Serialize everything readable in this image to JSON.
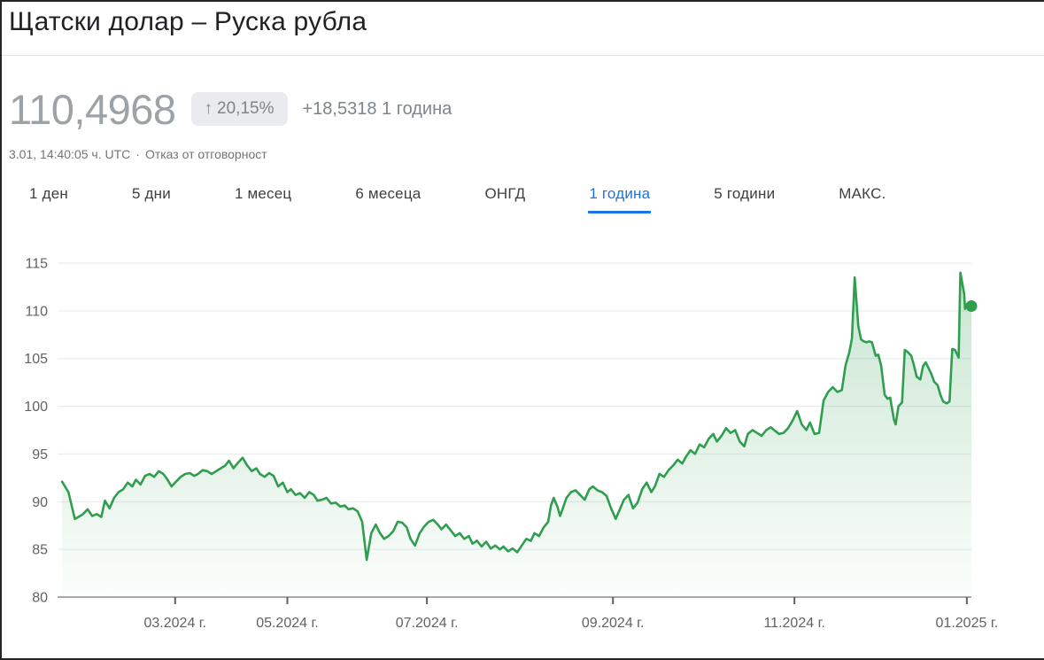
{
  "header": {
    "title": "Щатски долар – Руска рубла",
    "price": "110,4968",
    "change_badge": {
      "arrow": "↑",
      "percent": "20,15%"
    },
    "change_text": "+18,5318 1 година",
    "timestamp": "3.01, 14:40:05 ч. UTC",
    "separator": "·",
    "disclaimer": "Отказ от отговорност"
  },
  "tabs": [
    {
      "label": "1 ден",
      "active": false
    },
    {
      "label": "5 дни",
      "active": false
    },
    {
      "label": "1 месец",
      "active": false
    },
    {
      "label": "6 месеца",
      "active": false
    },
    {
      "label": "ОНГД",
      "active": false
    },
    {
      "label": "1 година",
      "active": true
    },
    {
      "label": "5 години",
      "active": false
    },
    {
      "label": "МАКС.",
      "active": false
    }
  ],
  "colors": {
    "line_green": "#2f9e4f",
    "active_tab_blue": "#1a73e8",
    "grid_gray": "#e7e9ec",
    "axis_gray": "#9a9ea3",
    "label_gray": "#5f6368",
    "price_gray": "#9da2a7",
    "badge_bg": "#e9ebee",
    "badge_text": "#7d858c"
  },
  "chart_data": {
    "type": "line",
    "title": "Щатски долар – Руска рубла, 1 година",
    "xlabel": "",
    "ylabel": "",
    "ylim": [
      80,
      115
    ],
    "grid": true,
    "legend": "none",
    "y_ticks": [
      80,
      85,
      90,
      95,
      100,
      105,
      110,
      115
    ],
    "x_ticks": [
      {
        "label": "03.2024 г.",
        "f": 0.127
      },
      {
        "label": "05.2024 г.",
        "f": 0.25
      },
      {
        "label": "07.2024 г.",
        "f": 0.403
      },
      {
        "label": "09.2024 г.",
        "f": 0.607
      },
      {
        "label": "11.2024 г.",
        "f": 0.806
      },
      {
        "label": "01.2025 г.",
        "f": 0.995
      }
    ],
    "line_color": "#2f9e4f",
    "end_point": {
      "f": 1.0,
      "value": 110.4968
    },
    "points": [
      [
        0.003,
        92.1
      ],
      [
        0.01,
        91.0
      ],
      [
        0.017,
        88.2
      ],
      [
        0.021,
        88.4
      ],
      [
        0.026,
        88.7
      ],
      [
        0.031,
        89.2
      ],
      [
        0.036,
        88.5
      ],
      [
        0.041,
        88.7
      ],
      [
        0.046,
        88.4
      ],
      [
        0.05,
        90.1
      ],
      [
        0.055,
        89.3
      ],
      [
        0.06,
        90.4
      ],
      [
        0.065,
        91.0
      ],
      [
        0.07,
        91.3
      ],
      [
        0.075,
        92.0
      ],
      [
        0.08,
        91.6
      ],
      [
        0.084,
        92.3
      ],
      [
        0.089,
        91.8
      ],
      [
        0.094,
        92.7
      ],
      [
        0.099,
        92.9
      ],
      [
        0.104,
        92.6
      ],
      [
        0.109,
        93.2
      ],
      [
        0.114,
        92.9
      ],
      [
        0.118,
        92.4
      ],
      [
        0.123,
        91.6
      ],
      [
        0.128,
        92.1
      ],
      [
        0.133,
        92.6
      ],
      [
        0.138,
        92.9
      ],
      [
        0.143,
        93.0
      ],
      [
        0.148,
        92.7
      ],
      [
        0.152,
        92.9
      ],
      [
        0.157,
        93.3
      ],
      [
        0.162,
        93.2
      ],
      [
        0.167,
        92.9
      ],
      [
        0.172,
        93.2
      ],
      [
        0.177,
        93.5
      ],
      [
        0.182,
        93.8
      ],
      [
        0.186,
        94.3
      ],
      [
        0.191,
        93.5
      ],
      [
        0.196,
        94.1
      ],
      [
        0.201,
        94.6
      ],
      [
        0.206,
        93.8
      ],
      [
        0.211,
        93.2
      ],
      [
        0.216,
        93.5
      ],
      [
        0.22,
        92.9
      ],
      [
        0.225,
        92.6
      ],
      [
        0.23,
        93.0
      ],
      [
        0.235,
        92.7
      ],
      [
        0.24,
        91.6
      ],
      [
        0.245,
        92.0
      ],
      [
        0.25,
        91.0
      ],
      [
        0.254,
        91.3
      ],
      [
        0.259,
        90.7
      ],
      [
        0.264,
        90.9
      ],
      [
        0.269,
        90.4
      ],
      [
        0.274,
        91.0
      ],
      [
        0.279,
        90.7
      ],
      [
        0.283,
        90.1
      ],
      [
        0.288,
        90.2
      ],
      [
        0.293,
        90.4
      ],
      [
        0.298,
        89.8
      ],
      [
        0.303,
        89.9
      ],
      [
        0.308,
        89.5
      ],
      [
        0.313,
        89.6
      ],
      [
        0.317,
        89.2
      ],
      [
        0.322,
        89.3
      ],
      [
        0.327,
        89.0
      ],
      [
        0.332,
        87.9
      ],
      [
        0.337,
        83.9
      ],
      [
        0.342,
        86.7
      ],
      [
        0.347,
        87.6
      ],
      [
        0.351,
        86.8
      ],
      [
        0.356,
        86.1
      ],
      [
        0.361,
        86.4
      ],
      [
        0.366,
        86.9
      ],
      [
        0.371,
        87.9
      ],
      [
        0.376,
        87.8
      ],
      [
        0.381,
        87.3
      ],
      [
        0.385,
        86.1
      ],
      [
        0.39,
        85.4
      ],
      [
        0.395,
        86.7
      ],
      [
        0.4,
        87.4
      ],
      [
        0.405,
        87.9
      ],
      [
        0.41,
        88.1
      ],
      [
        0.415,
        87.6
      ],
      [
        0.419,
        87.1
      ],
      [
        0.424,
        87.6
      ],
      [
        0.429,
        87.0
      ],
      [
        0.434,
        86.4
      ],
      [
        0.439,
        86.7
      ],
      [
        0.444,
        86.1
      ],
      [
        0.449,
        86.4
      ],
      [
        0.453,
        85.6
      ],
      [
        0.458,
        85.9
      ],
      [
        0.463,
        85.3
      ],
      [
        0.468,
        85.8
      ],
      [
        0.473,
        85.1
      ],
      [
        0.478,
        85.4
      ],
      [
        0.483,
        85.0
      ],
      [
        0.487,
        85.3
      ],
      [
        0.492,
        84.8
      ],
      [
        0.497,
        85.1
      ],
      [
        0.502,
        84.7
      ],
      [
        0.507,
        85.4
      ],
      [
        0.512,
        86.1
      ],
      [
        0.517,
        85.9
      ],
      [
        0.521,
        86.7
      ],
      [
        0.526,
        86.4
      ],
      [
        0.531,
        87.3
      ],
      [
        0.536,
        87.9
      ],
      [
        0.539,
        89.6
      ],
      [
        0.542,
        90.4
      ],
      [
        0.546,
        89.5
      ],
      [
        0.549,
        88.5
      ],
      [
        0.551,
        89.0
      ],
      [
        0.556,
        90.4
      ],
      [
        0.561,
        91.0
      ],
      [
        0.566,
        91.2
      ],
      [
        0.571,
        90.7
      ],
      [
        0.576,
        90.2
      ],
      [
        0.581,
        91.3
      ],
      [
        0.585,
        91.6
      ],
      [
        0.59,
        91.2
      ],
      [
        0.595,
        91.0
      ],
      [
        0.6,
        90.6
      ],
      [
        0.605,
        89.3
      ],
      [
        0.61,
        88.2
      ],
      [
        0.615,
        89.3
      ],
      [
        0.619,
        90.2
      ],
      [
        0.624,
        90.7
      ],
      [
        0.629,
        89.3
      ],
      [
        0.634,
        89.9
      ],
      [
        0.639,
        91.3
      ],
      [
        0.644,
        92.0
      ],
      [
        0.649,
        91.0
      ],
      [
        0.653,
        91.6
      ],
      [
        0.658,
        92.9
      ],
      [
        0.663,
        92.6
      ],
      [
        0.668,
        93.3
      ],
      [
        0.673,
        93.8
      ],
      [
        0.678,
        94.4
      ],
      [
        0.683,
        94.0
      ],
      [
        0.687,
        94.7
      ],
      [
        0.692,
        95.4
      ],
      [
        0.697,
        95.0
      ],
      [
        0.702,
        96.0
      ],
      [
        0.707,
        95.7
      ],
      [
        0.712,
        96.6
      ],
      [
        0.717,
        97.1
      ],
      [
        0.721,
        96.3
      ],
      [
        0.726,
        96.9
      ],
      [
        0.731,
        97.7
      ],
      [
        0.736,
        97.2
      ],
      [
        0.741,
        97.5
      ],
      [
        0.746,
        96.3
      ],
      [
        0.751,
        95.8
      ],
      [
        0.755,
        97.1
      ],
      [
        0.76,
        97.5
      ],
      [
        0.765,
        97.2
      ],
      [
        0.77,
        96.9
      ],
      [
        0.775,
        97.5
      ],
      [
        0.78,
        97.8
      ],
      [
        0.785,
        97.4
      ],
      [
        0.789,
        97.1
      ],
      [
        0.794,
        97.2
      ],
      [
        0.799,
        97.7
      ],
      [
        0.804,
        98.5
      ],
      [
        0.809,
        99.5
      ],
      [
        0.814,
        98.1
      ],
      [
        0.819,
        97.5
      ],
      [
        0.823,
        98.3
      ],
      [
        0.828,
        97.1
      ],
      [
        0.833,
        97.2
      ],
      [
        0.838,
        100.6
      ],
      [
        0.843,
        101.5
      ],
      [
        0.848,
        102.0
      ],
      [
        0.853,
        101.5
      ],
      [
        0.858,
        101.7
      ],
      [
        0.862,
        104.3
      ],
      [
        0.866,
        105.6
      ],
      [
        0.869,
        107.1
      ],
      [
        0.872,
        113.5
      ],
      [
        0.876,
        108.4
      ],
      [
        0.879,
        107.0
      ],
      [
        0.882,
        106.8
      ],
      [
        0.885,
        106.7
      ],
      [
        0.888,
        106.8
      ],
      [
        0.891,
        106.7
      ],
      [
        0.895,
        105.3
      ],
      [
        0.898,
        105.4
      ],
      [
        0.901,
        104.3
      ],
      [
        0.905,
        101.2
      ],
      [
        0.908,
        100.8
      ],
      [
        0.911,
        100.9
      ],
      [
        0.915,
        98.6
      ],
      [
        0.917,
        98.1
      ],
      [
        0.92,
        100.0
      ],
      [
        0.924,
        100.4
      ],
      [
        0.927,
        105.9
      ],
      [
        0.93,
        105.7
      ],
      [
        0.934,
        105.3
      ],
      [
        0.937,
        104.3
      ],
      [
        0.94,
        103.1
      ],
      [
        0.944,
        102.8
      ],
      [
        0.947,
        104.2
      ],
      [
        0.95,
        104.6
      ],
      [
        0.953,
        104.0
      ],
      [
        0.956,
        103.4
      ],
      [
        0.959,
        102.6
      ],
      [
        0.963,
        102.2
      ],
      [
        0.966,
        101.2
      ],
      [
        0.969,
        100.5
      ],
      [
        0.973,
        100.3
      ],
      [
        0.976,
        100.5
      ],
      [
        0.979,
        106.0
      ],
      [
        0.982,
        105.9
      ],
      [
        0.986,
        105.1
      ],
      [
        0.988,
        114.0
      ],
      [
        0.992,
        111.8
      ],
      [
        0.993,
        110.2
      ],
      [
        0.995,
        110.7
      ],
      [
        1.0,
        110.5
      ]
    ]
  }
}
